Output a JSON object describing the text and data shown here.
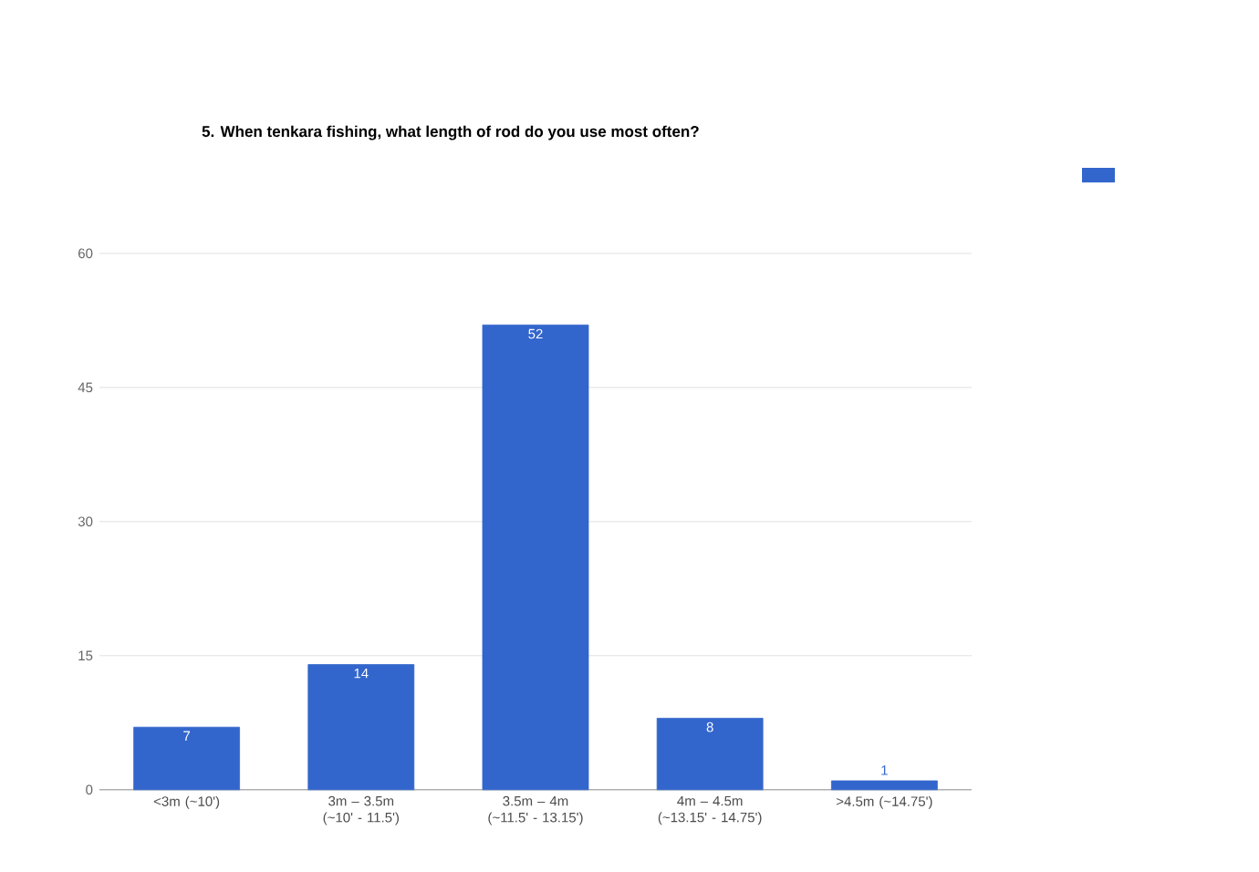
{
  "chart_data": {
    "type": "bar",
    "title": "**5. When tenkara fishing, what length of rod do you use most often?**",
    "categories": [
      "<3m (~10')",
      "3m – 3.5m (~10' - 11.5')",
      "3.5m – 4m (~11.5' - 13.15')",
      "4m – 4.5m (~13.15' - 14.75')",
      ">4.5m (~14.75')"
    ],
    "values": [
      7,
      14,
      52,
      8,
      1
    ],
    "color": "#3366cc",
    "ylim": [
      0,
      60
    ],
    "yticks": [
      0,
      15,
      30,
      45,
      60
    ],
    "grid": "y",
    "data_labels": true
  }
}
